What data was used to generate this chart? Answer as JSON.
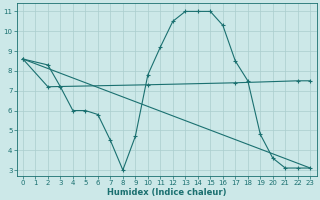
{
  "title": "",
  "xlabel": "Humidex (Indice chaleur)",
  "ylabel": "",
  "bg_color": "#cce8e8",
  "grid_color": "#aacece",
  "line_color": "#1a7070",
  "xlim": [
    -0.5,
    23.5
  ],
  "ylim": [
    2.7,
    11.4
  ],
  "yticks": [
    3,
    4,
    5,
    6,
    7,
    8,
    9,
    10,
    11
  ],
  "xticks": [
    0,
    1,
    2,
    3,
    4,
    5,
    6,
    7,
    8,
    9,
    10,
    11,
    12,
    13,
    14,
    15,
    16,
    17,
    18,
    19,
    20,
    21,
    22,
    23
  ],
  "line1_x": [
    0,
    2,
    3,
    4,
    5,
    6,
    7,
    8,
    9,
    10,
    11,
    12,
    13,
    14,
    15,
    16,
    17,
    18,
    19,
    20,
    21,
    22,
    23
  ],
  "line1_y": [
    8.6,
    8.3,
    7.2,
    6.0,
    6.0,
    5.8,
    4.5,
    3.0,
    4.7,
    7.8,
    9.2,
    10.5,
    11.0,
    11.0,
    11.0,
    10.3,
    8.5,
    7.5,
    4.8,
    3.6,
    3.1,
    3.1,
    3.1
  ],
  "line2_x": [
    0,
    2,
    10,
    17,
    22,
    23
  ],
  "line2_y": [
    8.6,
    7.2,
    7.3,
    7.4,
    7.5,
    7.5
  ],
  "line3_x": [
    0,
    23
  ],
  "line3_y": [
    8.6,
    3.1
  ]
}
